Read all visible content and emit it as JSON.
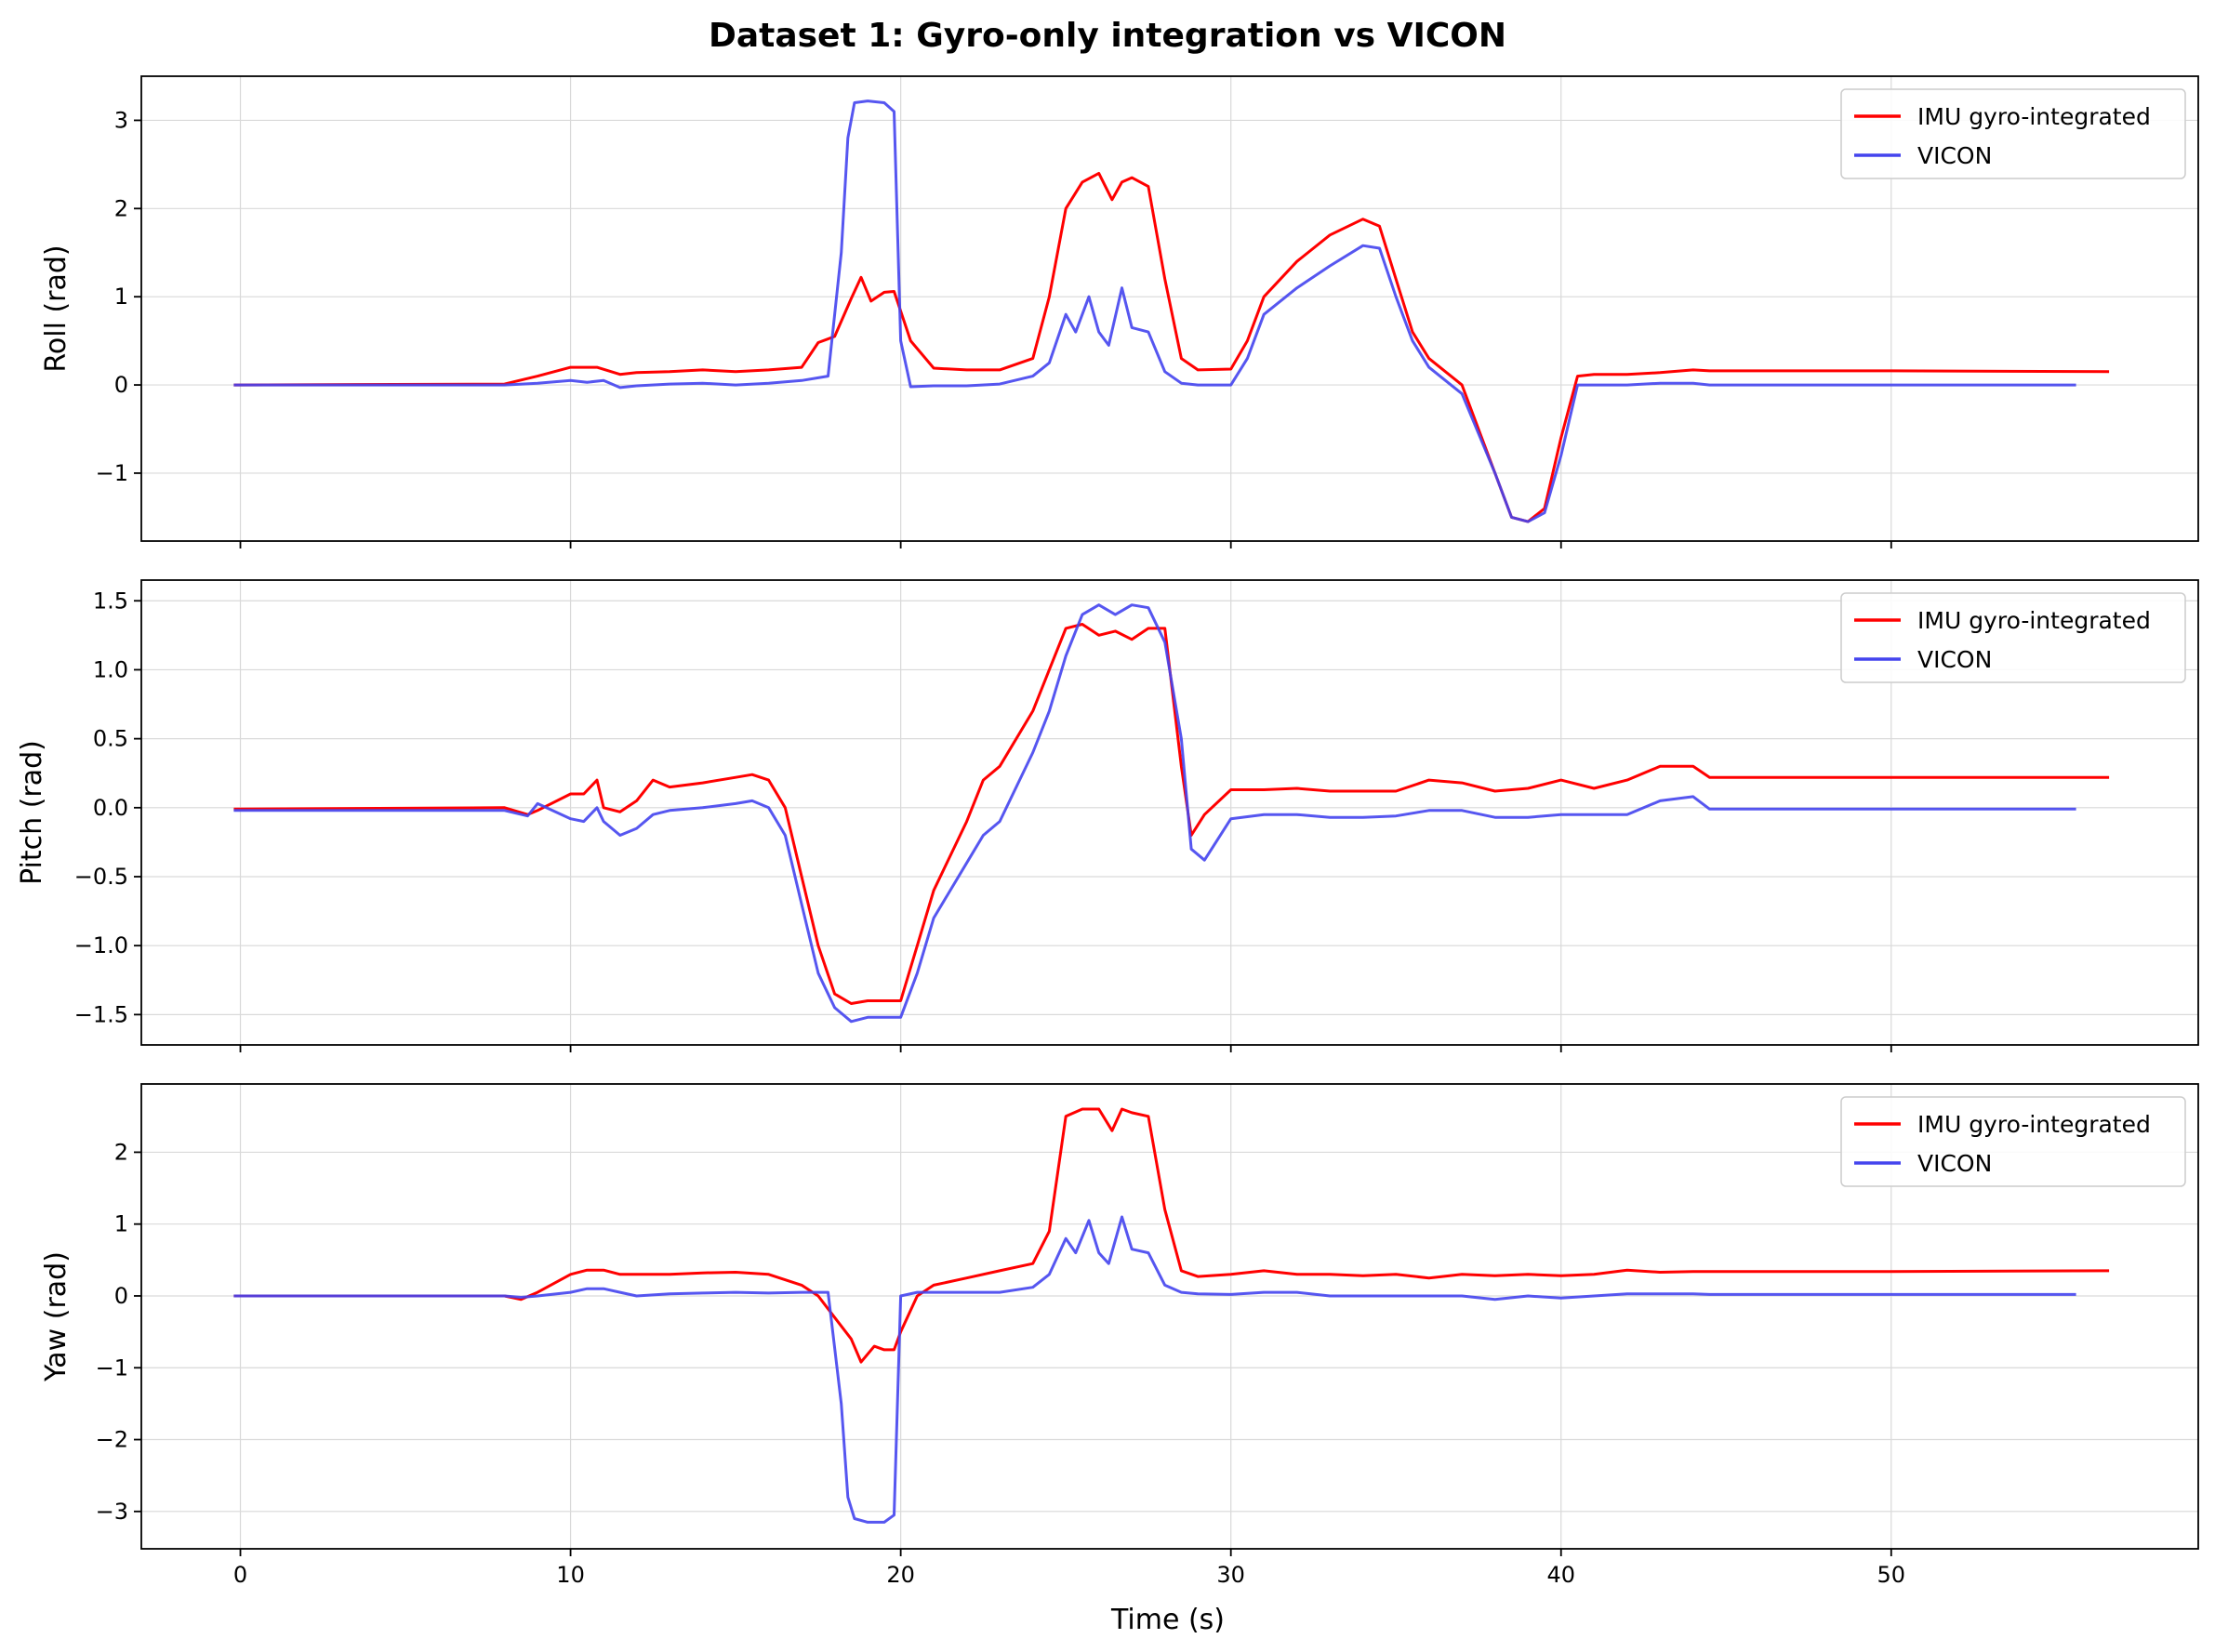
{
  "title": "Dataset 1: Gyro-only integration vs VICON",
  "xlabel": "Time (s)",
  "colors": {
    "imu": "#ff0000",
    "vicon": "#4444ee"
  },
  "chart_data": [
    {
      "type": "line",
      "ylabel": "Roll (rad)",
      "xlim": [
        -3,
        59.3
      ],
      "ylim": [
        -1.77,
        3.5
      ],
      "xticks": [
        0,
        10,
        20,
        30,
        40,
        50
      ],
      "yticks": [
        -1,
        0,
        1,
        2,
        3
      ],
      "yticklabels": [
        "−1",
        "0",
        "1",
        "2",
        "3"
      ],
      "grid": true,
      "legend_position": "top-right",
      "series": [
        {
          "name": "IMU gyro-integrated",
          "color": "#ff0000",
          "x": [
            -0.2,
            8,
            9,
            10,
            10.8,
            11.5,
            12,
            13,
            14,
            15,
            16,
            17,
            17.5,
            18,
            18.5,
            18.8,
            19.1,
            19.5,
            19.8,
            20.3,
            21,
            22,
            23,
            24,
            24.5,
            25,
            25.5,
            26,
            26.4,
            26.7,
            27,
            27.5,
            28,
            28.5,
            29,
            30,
            30.5,
            31,
            32,
            33,
            34,
            34.5,
            35,
            35.5,
            36,
            37,
            38,
            38.5,
            39,
            39.5,
            40,
            40.5,
            41,
            42,
            43,
            44,
            44.5,
            50,
            56.6
          ],
          "y": [
            0,
            0.01,
            0.1,
            0.2,
            0.2,
            0.12,
            0.14,
            0.15,
            0.17,
            0.15,
            0.17,
            0.2,
            0.48,
            0.55,
            0.98,
            1.22,
            0.95,
            1.05,
            1.06,
            0.5,
            0.19,
            0.17,
            0.17,
            0.3,
            1.0,
            2.0,
            2.3,
            2.4,
            2.1,
            2.3,
            2.35,
            2.25,
            1.2,
            0.3,
            0.17,
            0.18,
            0.5,
            1.0,
            1.4,
            1.7,
            1.88,
            1.8,
            1.2,
            0.6,
            0.3,
            0.0,
            -1.0,
            -1.5,
            -1.55,
            -1.4,
            -0.6,
            0.1,
            0.12,
            0.12,
            0.14,
            0.17,
            0.16,
            0.16,
            0.15
          ]
        },
        {
          "name": "VICON",
          "color": "#4444ee",
          "x": [
            -0.2,
            8,
            9,
            10,
            10.5,
            11,
            11.5,
            12,
            13,
            14,
            15,
            16,
            17,
            17.8,
            18.2,
            18.4,
            18.6,
            19,
            19.5,
            19.8,
            20,
            20.3,
            21,
            22,
            23,
            24,
            24.5,
            25,
            25.3,
            25.7,
            26,
            26.3,
            26.7,
            27,
            27.5,
            28,
            28.5,
            29,
            30,
            30.5,
            31,
            32,
            33,
            34,
            34.5,
            35,
            35.5,
            36,
            37,
            38,
            38.5,
            39,
            39.5,
            40,
            40.5,
            41,
            42,
            43,
            44,
            44.5,
            50,
            55.6
          ],
          "y": [
            0,
            0,
            0.02,
            0.05,
            0.03,
            0.05,
            -0.03,
            -0.01,
            0.01,
            0.02,
            0.0,
            0.02,
            0.05,
            0.1,
            1.5,
            2.8,
            3.2,
            3.22,
            3.2,
            3.1,
            0.5,
            -0.02,
            -0.01,
            -0.01,
            0.01,
            0.1,
            0.25,
            0.8,
            0.6,
            1.0,
            0.6,
            0.45,
            1.1,
            0.65,
            0.6,
            0.15,
            0.02,
            0.0,
            0.0,
            0.3,
            0.8,
            1.1,
            1.35,
            1.58,
            1.55,
            1.0,
            0.5,
            0.2,
            -0.1,
            -1.0,
            -1.5,
            -1.55,
            -1.45,
            -0.8,
            0.0,
            0.0,
            0.0,
            0.02,
            0.02,
            0.0,
            0.0,
            0.0
          ]
        }
      ]
    },
    {
      "type": "line",
      "ylabel": "Pitch (rad)",
      "xlim": [
        -3,
        59.3
      ],
      "ylim": [
        -1.72,
        1.65
      ],
      "xticks": [
        0,
        10,
        20,
        30,
        40,
        50
      ],
      "yticks": [
        -1.5,
        -1.0,
        -0.5,
        0.0,
        0.5,
        1.0,
        1.5
      ],
      "yticklabels": [
        "−1.5",
        "−1.0",
        "−0.5",
        "0.0",
        "0.5",
        "1.0",
        "1.5"
      ],
      "grid": true,
      "legend_position": "top-right",
      "series": [
        {
          "name": "IMU gyro-integrated",
          "color": "#ff0000",
          "x": [
            -0.2,
            8,
            8.7,
            9,
            10,
            10.4,
            10.8,
            11,
            11.5,
            12,
            12.5,
            13,
            14,
            15,
            15.5,
            16,
            16.5,
            17,
            17.5,
            18,
            18.5,
            19,
            19.5,
            20,
            20.5,
            21,
            22,
            22.5,
            23,
            24,
            24.5,
            25,
            25.5,
            26,
            26.5,
            27,
            27.5,
            28,
            28.5,
            28.8,
            29.2,
            30,
            31,
            32,
            33,
            34,
            35,
            36,
            37,
            38,
            39,
            40,
            41,
            42,
            43,
            44,
            44.5,
            50,
            56.6
          ],
          "y": [
            -0.01,
            0.0,
            -0.05,
            -0.02,
            0.1,
            0.1,
            0.2,
            0.0,
            -0.03,
            0.05,
            0.2,
            0.15,
            0.18,
            0.22,
            0.24,
            0.2,
            0.0,
            -0.5,
            -1.0,
            -1.35,
            -1.42,
            -1.4,
            -1.4,
            -1.4,
            -1.0,
            -0.6,
            -0.1,
            0.2,
            0.3,
            0.7,
            1.0,
            1.3,
            1.33,
            1.25,
            1.28,
            1.22,
            1.3,
            1.3,
            0.3,
            -0.2,
            -0.05,
            0.13,
            0.13,
            0.14,
            0.12,
            0.12,
            0.12,
            0.2,
            0.18,
            0.12,
            0.14,
            0.2,
            0.14,
            0.2,
            0.3,
            0.3,
            0.22,
            0.22,
            0.22
          ]
        },
        {
          "name": "VICON",
          "color": "#4444ee",
          "x": [
            -0.2,
            8,
            8.7,
            9,
            10,
            10.4,
            10.8,
            11,
            11.5,
            12,
            12.5,
            13,
            14,
            15,
            15.5,
            16,
            16.5,
            17,
            17.5,
            18,
            18.5,
            19,
            19.5,
            20,
            20.5,
            21,
            22,
            22.5,
            23,
            24,
            24.5,
            25,
            25.5,
            26,
            26.5,
            27,
            27.5,
            28,
            28.5,
            28.8,
            29.2,
            30,
            31,
            32,
            33,
            34,
            35,
            36,
            37,
            38,
            39,
            40,
            41,
            42,
            43,
            44,
            44.5,
            50,
            55.6
          ],
          "y": [
            -0.02,
            -0.02,
            -0.06,
            0.03,
            -0.08,
            -0.1,
            0.0,
            -0.1,
            -0.2,
            -0.15,
            -0.05,
            -0.02,
            0.0,
            0.03,
            0.05,
            0.0,
            -0.2,
            -0.7,
            -1.2,
            -1.45,
            -1.55,
            -1.52,
            -1.52,
            -1.52,
            -1.2,
            -0.8,
            -0.4,
            -0.2,
            -0.1,
            0.4,
            0.7,
            1.1,
            1.4,
            1.47,
            1.4,
            1.47,
            1.45,
            1.2,
            0.5,
            -0.3,
            -0.38,
            -0.08,
            -0.05,
            -0.05,
            -0.07,
            -0.07,
            -0.06,
            -0.02,
            -0.02,
            -0.07,
            -0.07,
            -0.05,
            -0.05,
            -0.05,
            0.05,
            0.08,
            -0.01,
            -0.01,
            -0.01
          ]
        }
      ]
    },
    {
      "type": "line",
      "ylabel": "Yaw (rad)",
      "xlim": [
        -3,
        59.3
      ],
      "ylim": [
        -3.52,
        2.95
      ],
      "xticks": [
        0,
        10,
        20,
        30,
        40,
        50
      ],
      "xticklabels": [
        "0",
        "10",
        "20",
        "30",
        "40",
        "50"
      ],
      "yticks": [
        -3,
        -2,
        -1,
        0,
        1,
        2
      ],
      "yticklabels": [
        "−3",
        "−2",
        "−1",
        "0",
        "1",
        "2"
      ],
      "grid": true,
      "legend_position": "top-right",
      "series": [
        {
          "name": "IMU gyro-integrated",
          "color": "#ff0000",
          "x": [
            -0.2,
            8,
            8.5,
            9,
            10,
            10.5,
            11,
            11.5,
            12,
            13,
            14,
            15,
            16,
            17,
            17.5,
            18,
            18.5,
            18.8,
            19.2,
            19.5,
            19.8,
            20,
            20.5,
            21,
            22,
            23,
            24,
            24.5,
            25,
            25.5,
            26,
            26.4,
            26.7,
            27,
            27.5,
            28,
            28.5,
            29,
            30,
            31,
            32,
            33,
            34,
            35,
            36,
            37,
            38,
            39,
            40,
            41,
            42,
            43,
            44,
            44.5,
            50,
            56.6
          ],
          "y": [
            0,
            0,
            -0.05,
            0.05,
            0.3,
            0.36,
            0.36,
            0.3,
            0.3,
            0.3,
            0.32,
            0.33,
            0.3,
            0.15,
            0.0,
            -0.3,
            -0.6,
            -0.92,
            -0.7,
            -0.75,
            -0.75,
            -0.5,
            0.0,
            0.15,
            0.25,
            0.35,
            0.45,
            0.9,
            2.5,
            2.6,
            2.6,
            2.3,
            2.6,
            2.55,
            2.5,
            1.2,
            0.35,
            0.27,
            0.3,
            0.35,
            0.3,
            0.3,
            0.28,
            0.3,
            0.25,
            0.3,
            0.28,
            0.3,
            0.28,
            0.3,
            0.36,
            0.33,
            0.34,
            0.34,
            0.34,
            0.35
          ]
        },
        {
          "name": "VICON",
          "color": "#4444ee",
          "x": [
            -0.2,
            8,
            8.5,
            9,
            10,
            10.5,
            11,
            11.5,
            12,
            13,
            14,
            15,
            16,
            17,
            17.8,
            18.2,
            18.4,
            18.6,
            19,
            19.5,
            19.8,
            20,
            20.5,
            21,
            22,
            23,
            24,
            24.5,
            25,
            25.3,
            25.7,
            26,
            26.3,
            26.7,
            27,
            27.5,
            28,
            28.5,
            29,
            30,
            31,
            32,
            33,
            34,
            35,
            36,
            37,
            38,
            39,
            40,
            41,
            42,
            43,
            44,
            44.5,
            50,
            55.6
          ],
          "y": [
            0,
            0,
            -0.02,
            0.0,
            0.05,
            0.1,
            0.1,
            0.05,
            0.0,
            0.03,
            0.04,
            0.05,
            0.04,
            0.05,
            0.05,
            -1.5,
            -2.8,
            -3.1,
            -3.15,
            -3.15,
            -3.05,
            0.0,
            0.05,
            0.05,
            0.05,
            0.05,
            0.12,
            0.3,
            0.8,
            0.6,
            1.05,
            0.6,
            0.45,
            1.1,
            0.65,
            0.6,
            0.15,
            0.05,
            0.03,
            0.02,
            0.05,
            0.05,
            0.0,
            0.0,
            0.0,
            0.0,
            0.0,
            -0.05,
            0.0,
            -0.03,
            0.0,
            0.03,
            0.03,
            0.03,
            0.02,
            0.02,
            0.02
          ]
        }
      ]
    }
  ]
}
